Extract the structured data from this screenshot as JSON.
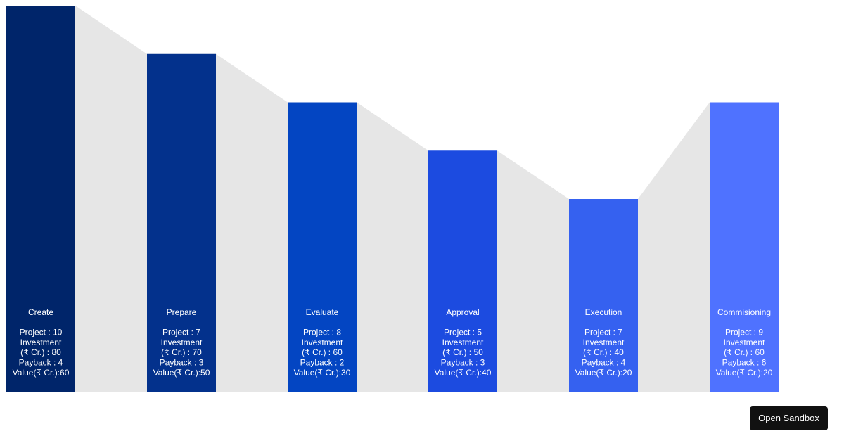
{
  "chart_data": {
    "type": "bar",
    "categories": [
      "Create",
      "Prepare",
      "Evaluate",
      "Approval",
      "Execution",
      "Commisioning"
    ],
    "values": [
      8,
      7,
      6,
      5,
      4,
      6
    ],
    "ylim": [
      0,
      8
    ],
    "grid": false,
    "legend": "none",
    "colors": [
      "#00256a",
      "#03318c",
      "#0345c2",
      "#1c4be0",
      "#3561f0",
      "#4f72ff"
    ],
    "connector_color": "#e6e6e6",
    "data_labels": [
      [
        "Create",
        "",
        "Project : 10",
        "Investment",
        "(₹ Cr.) : 80",
        "Payback : 4",
        "Value(₹ Cr.):60"
      ],
      [
        "Prepare",
        "",
        "Project : 7",
        "Investment",
        "(₹ Cr.) : 70",
        "Payback : 3",
        "Value(₹ Cr.):50"
      ],
      [
        "Evaluate",
        "",
        "Project : 8",
        "Investment",
        "(₹ Cr.) : 60",
        "Payback : 2",
        "Value(₹ Cr.):30"
      ],
      [
        "Approval",
        "",
        "Project : 5",
        "Investment",
        "(₹ Cr.) : 50",
        "Payback : 3",
        "Value(₹ Cr.):40"
      ],
      [
        "Execution",
        "",
        "Project : 7",
        "Investment",
        "(₹ Cr.) : 40",
        "Payback : 4",
        "Value(₹ Cr.):20"
      ],
      [
        "Commisioning",
        "",
        "Project : 9",
        "Investment",
        "(₹ Cr.) : 60",
        "Payback : 6",
        "Value(₹ Cr.):20"
      ]
    ]
  },
  "toolbar": {
    "open_sandbox_label": "Open Sandbox"
  }
}
